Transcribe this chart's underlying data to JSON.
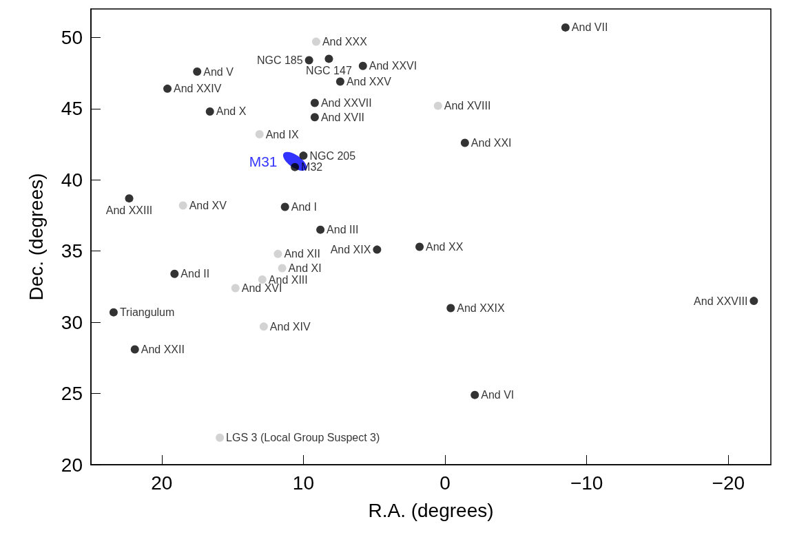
{
  "chart_data": {
    "type": "scatter",
    "xlabel": "R.A. (degrees)",
    "ylabel": "Dec. (degrees)",
    "xlim": [
      25,
      -23
    ],
    "xticks": [
      20,
      10,
      0,
      {
        "value": -10,
        "label": "−10"
      },
      {
        "value": -20,
        "label": "−20"
      }
    ],
    "ylim": [
      20,
      52
    ],
    "yticks": [
      20,
      25,
      30,
      35,
      40,
      45,
      50
    ],
    "grid": false,
    "legend": false,
    "marker": "circle",
    "series": [
      {
        "color": "#000000",
        "x": [
          -8.5,
          9.6,
          8.2,
          5.8,
          7.4,
          17.5,
          19.6,
          16.6,
          9.2,
          9.2,
          -1.4,
          10.0,
          10.6,
          22.3,
          11.3,
          8.8,
          4.8,
          1.8,
          19.1,
          23.4,
          -0.4,
          -21.8,
          21.9,
          -2.1
        ],
        "values": [
          50.7,
          48.4,
          48.5,
          48.0,
          46.9,
          47.6,
          46.4,
          44.8,
          45.4,
          44.4,
          42.6,
          41.7,
          40.9,
          38.7,
          38.1,
          36.5,
          35.1,
          35.3,
          33.4,
          30.7,
          31.0,
          31.5,
          28.1,
          24.9
        ]
      },
      {
        "color": "#c8c8c8",
        "x": [
          9.1,
          13.1,
          0.5,
          18.5,
          11.8,
          11.5,
          12.9,
          14.8,
          12.8,
          15.9
        ],
        "values": [
          49.7,
          43.2,
          45.2,
          38.2,
          34.8,
          33.8,
          33.0,
          32.4,
          29.7,
          21.9
        ]
      },
      {
        "name": "M31",
        "color": "#0000ff",
        "x": [
          10.6
        ],
        "values": [
          41.3
        ]
      }
    ],
    "annotations": [
      {
        "text": "And VII",
        "x": -8.5,
        "y": 50.7
      },
      {
        "text": "NGC 185",
        "x": 9.6,
        "y": 48.4
      },
      {
        "text": "NGC 147",
        "x": 8.2,
        "y": 48.5
      },
      {
        "text": "And XXVI",
        "x": 5.8,
        "y": 48.0
      },
      {
        "text": "And XXV",
        "x": 7.4,
        "y": 46.9
      },
      {
        "text": "And V",
        "x": 17.5,
        "y": 47.6
      },
      {
        "text": "And XXIV",
        "x": 19.6,
        "y": 46.4
      },
      {
        "text": "And X",
        "x": 16.6,
        "y": 44.8
      },
      {
        "text": "And XXVII",
        "x": 9.2,
        "y": 45.4
      },
      {
        "text": "And XVII",
        "x": 9.2,
        "y": 44.4
      },
      {
        "text": "And XXI",
        "x": -1.4,
        "y": 42.6
      },
      {
        "text": "NGC 205",
        "x": 10.0,
        "y": 41.7
      },
      {
        "text": "M32",
        "x": 10.6,
        "y": 40.9
      },
      {
        "text": "And XXIII",
        "x": 22.3,
        "y": 38.7
      },
      {
        "text": "And I",
        "x": 11.3,
        "y": 38.1
      },
      {
        "text": "And III",
        "x": 8.8,
        "y": 36.5
      },
      {
        "text": "And XIX",
        "x": 4.8,
        "y": 35.1
      },
      {
        "text": "And XX",
        "x": 1.8,
        "y": 35.3
      },
      {
        "text": "And II",
        "x": 19.1,
        "y": 33.4
      },
      {
        "text": "Triangulum",
        "x": 23.4,
        "y": 30.7
      },
      {
        "text": "And XXIX",
        "x": -0.4,
        "y": 31.0
      },
      {
        "text": "And XXVIII",
        "x": -21.8,
        "y": 31.5
      },
      {
        "text": "And XXII",
        "x": 21.9,
        "y": 28.1
      },
      {
        "text": "And VI",
        "x": -2.1,
        "y": 24.9
      },
      {
        "text": "And XXX",
        "x": 9.1,
        "y": 49.7
      },
      {
        "text": "And IX",
        "x": 13.1,
        "y": 43.2
      },
      {
        "text": "And XVIII",
        "x": 0.5,
        "y": 45.2
      },
      {
        "text": "And XV",
        "x": 18.5,
        "y": 38.2
      },
      {
        "text": "And XII",
        "x": 11.8,
        "y": 34.8
      },
      {
        "text": "And XI",
        "x": 11.5,
        "y": 33.8
      },
      {
        "text": "And XIII",
        "x": 12.9,
        "y": 33.0
      },
      {
        "text": "And XVI",
        "x": 14.8,
        "y": 32.4
      },
      {
        "text": "And XIV",
        "x": 12.8,
        "y": 29.7
      },
      {
        "text": "LGS 3 (Local Group Suspect 3)",
        "x": 15.9,
        "y": 21.9
      }
    ]
  }
}
